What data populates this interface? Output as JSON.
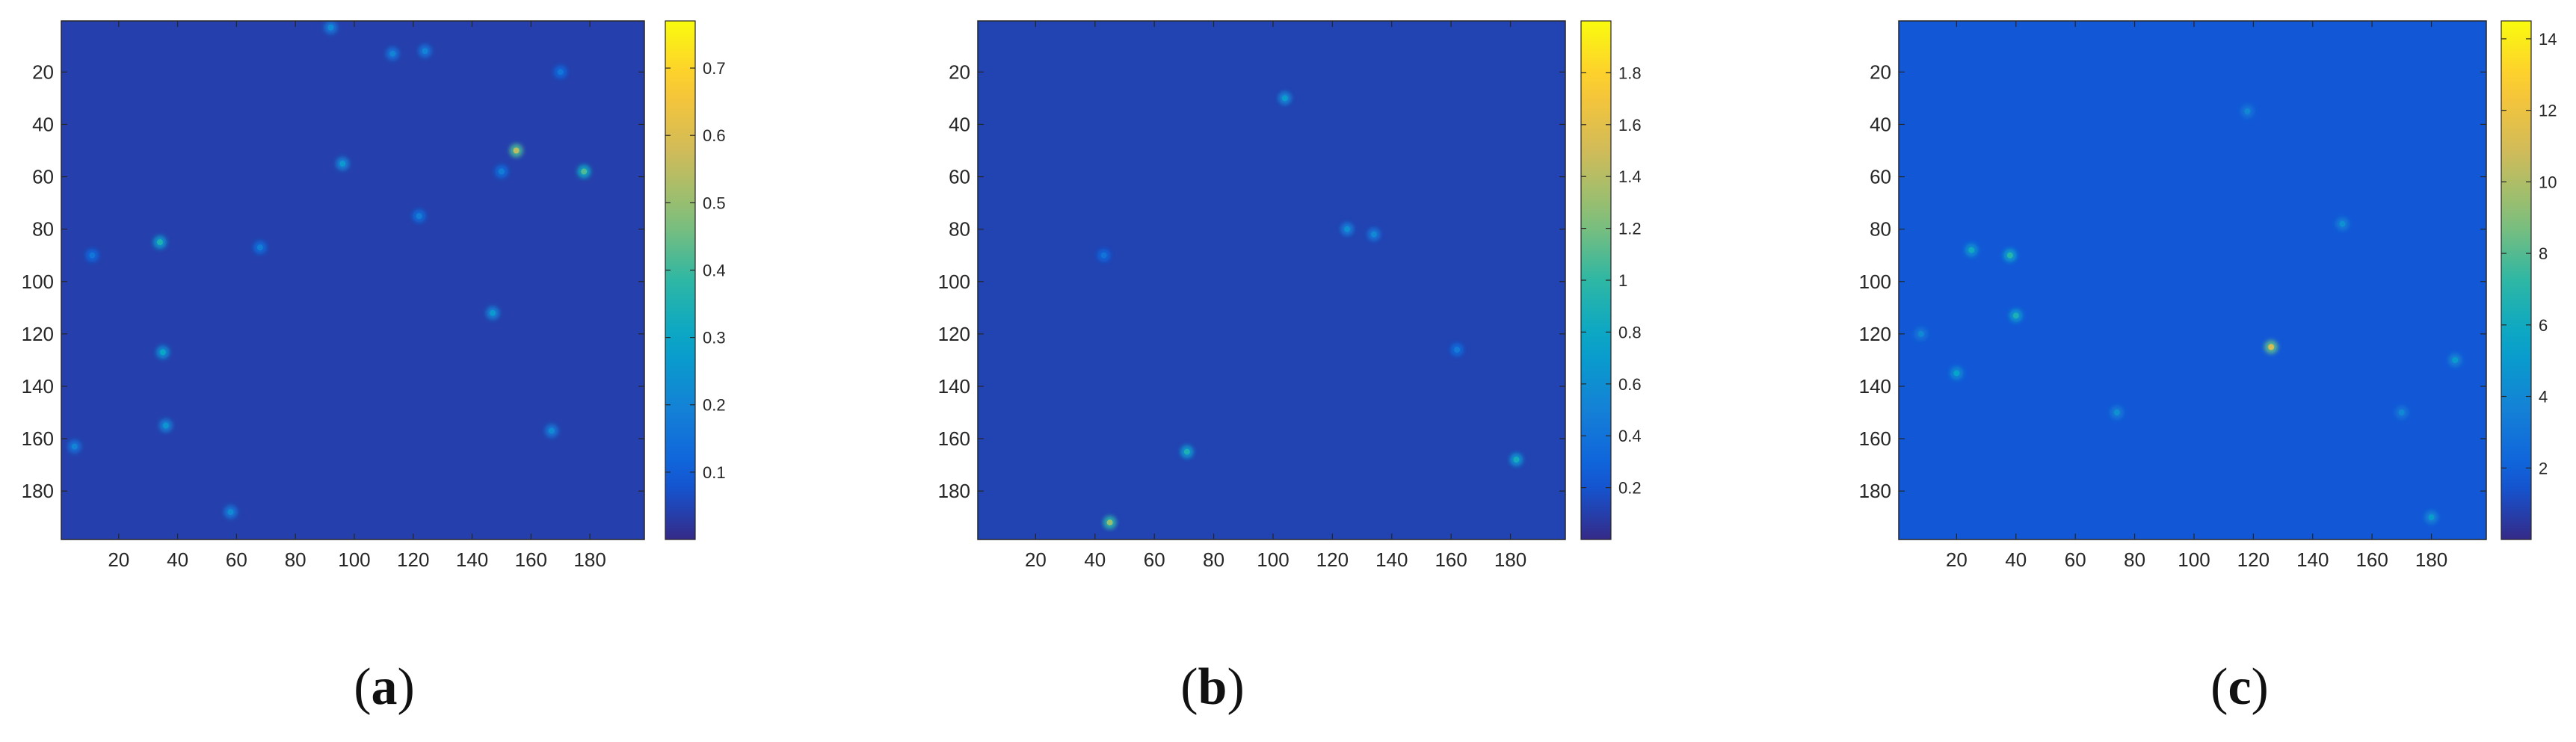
{
  "chart_data": [
    {
      "type": "heatmap",
      "panel_label": "a",
      "x_ticks": [
        20,
        40,
        60,
        80,
        100,
        120,
        140,
        160,
        180
      ],
      "y_ticks": [
        20,
        40,
        60,
        80,
        100,
        120,
        140,
        160,
        180
      ],
      "xlim": [
        0.5,
        198.5
      ],
      "ylim": [
        0.5,
        198.5
      ],
      "colorbar": {
        "range": [
          0,
          0.77
        ],
        "ticks": [
          0.1,
          0.2,
          0.3,
          0.4,
          0.5,
          0.6,
          0.7
        ]
      },
      "colormap": "parula",
      "base_value": 0.04,
      "hotspots": [
        {
          "x": 155,
          "y": 50,
          "v": 0.55
        },
        {
          "x": 178,
          "y": 58,
          "v": 0.42
        },
        {
          "x": 34,
          "y": 85,
          "v": 0.35
        },
        {
          "x": 35,
          "y": 127,
          "v": 0.3
        },
        {
          "x": 96,
          "y": 55,
          "v": 0.26
        },
        {
          "x": 147,
          "y": 112,
          "v": 0.26
        },
        {
          "x": 36,
          "y": 155,
          "v": 0.25
        },
        {
          "x": 167,
          "y": 157,
          "v": 0.22
        },
        {
          "x": 58,
          "y": 188,
          "v": 0.22
        },
        {
          "x": 92,
          "y": 3,
          "v": 0.22
        },
        {
          "x": 113,
          "y": 13,
          "v": 0.2
        },
        {
          "x": 124,
          "y": 12,
          "v": 0.2
        },
        {
          "x": 5,
          "y": 163,
          "v": 0.2
        },
        {
          "x": 68,
          "y": 87,
          "v": 0.18
        },
        {
          "x": 150,
          "y": 58,
          "v": 0.18
        },
        {
          "x": 122,
          "y": 75,
          "v": 0.18
        },
        {
          "x": 11,
          "y": 90,
          "v": 0.16
        },
        {
          "x": 170,
          "y": 20,
          "v": 0.16
        }
      ]
    },
    {
      "type": "heatmap",
      "panel_label": "b",
      "x_ticks": [
        20,
        40,
        60,
        80,
        100,
        120,
        140,
        160,
        180
      ],
      "y_ticks": [
        20,
        40,
        60,
        80,
        100,
        120,
        140,
        160,
        180
      ],
      "xlim": [
        0.5,
        198.5
      ],
      "ylim": [
        0.5,
        198.5
      ],
      "colorbar": {
        "range": [
          0,
          2.0
        ],
        "ticks": [
          0.2,
          0.4,
          0.6,
          0.8,
          1,
          1.2,
          1.4,
          1.6,
          1.8
        ]
      },
      "colormap": "parula",
      "base_value": 0.12,
      "hotspots": [
        {
          "x": 45,
          "y": 192,
          "v": 1.3
        },
        {
          "x": 71,
          "y": 165,
          "v": 0.9
        },
        {
          "x": 182,
          "y": 168,
          "v": 0.85
        },
        {
          "x": 104,
          "y": 30,
          "v": 0.7
        },
        {
          "x": 125,
          "y": 80,
          "v": 0.6
        },
        {
          "x": 134,
          "y": 82,
          "v": 0.55
        },
        {
          "x": 162,
          "y": 126,
          "v": 0.45
        },
        {
          "x": 43,
          "y": 90,
          "v": 0.4
        }
      ]
    },
    {
      "type": "heatmap",
      "panel_label": "c",
      "x_ticks": [
        20,
        40,
        60,
        80,
        100,
        120,
        140,
        160,
        180
      ],
      "y_ticks": [
        20,
        40,
        60,
        80,
        100,
        120,
        140,
        160,
        180
      ],
      "xlim": [
        0.5,
        198.5
      ],
      "ylim": [
        0.5,
        198.5
      ],
      "colorbar": {
        "range": [
          0,
          14.5
        ],
        "ticks": [
          2,
          4,
          6,
          8,
          10,
          12,
          14
        ]
      },
      "colormap": "parula",
      "base_value": 1.6,
      "hotspots": [
        {
          "x": 126,
          "y": 125,
          "v": 11
        },
        {
          "x": 38,
          "y": 90,
          "v": 7
        },
        {
          "x": 25,
          "y": 88,
          "v": 6
        },
        {
          "x": 40,
          "y": 113,
          "v": 6.5
        },
        {
          "x": 20,
          "y": 135,
          "v": 5.5
        },
        {
          "x": 188,
          "y": 130,
          "v": 5
        },
        {
          "x": 180,
          "y": 190,
          "v": 5
        },
        {
          "x": 150,
          "y": 78,
          "v": 4.5
        },
        {
          "x": 118,
          "y": 35,
          "v": 4
        },
        {
          "x": 74,
          "y": 150,
          "v": 4.5
        },
        {
          "x": 170,
          "y": 150,
          "v": 4
        },
        {
          "x": 8,
          "y": 120,
          "v": 4
        }
      ]
    }
  ]
}
